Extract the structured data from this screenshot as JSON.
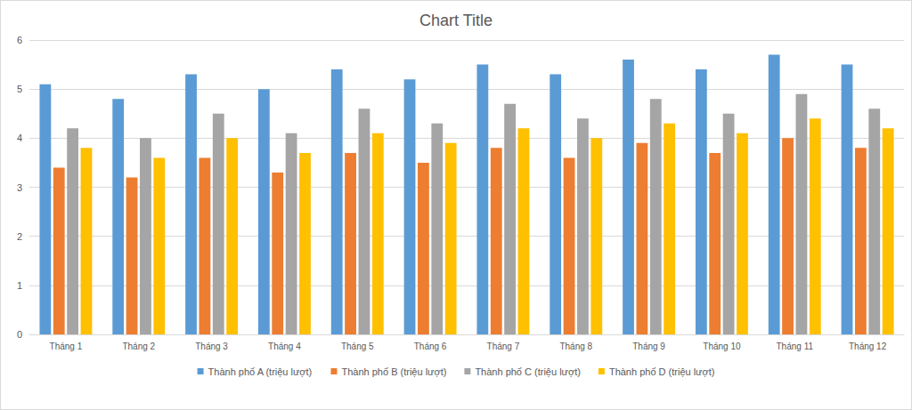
{
  "chart_data": {
    "type": "bar",
    "title": "Chart Title",
    "categories": [
      "Tháng 1",
      "Tháng 2",
      "Tháng 3",
      "Tháng 4",
      "Tháng 5",
      "Tháng 6",
      "Tháng 7",
      "Tháng 8",
      "Tháng 9",
      "Tháng 10",
      "Tháng 11",
      "Tháng 12"
    ],
    "series": [
      {
        "name": "Thành phố A (triệu lượt)",
        "color": "#5b9bd5",
        "values": [
          5.1,
          4.8,
          5.3,
          5.0,
          5.4,
          5.2,
          5.5,
          5.3,
          5.6,
          5.4,
          5.7,
          5.5
        ]
      },
      {
        "name": "Thành phố B (triệu lượt)",
        "color": "#ed7d31",
        "values": [
          3.4,
          3.2,
          3.6,
          3.3,
          3.7,
          3.5,
          3.8,
          3.6,
          3.9,
          3.7,
          4.0,
          3.8
        ]
      },
      {
        "name": "Thành phố C (triệu lượt)",
        "color": "#a5a5a5",
        "values": [
          4.2,
          4.0,
          4.5,
          4.1,
          4.6,
          4.3,
          4.7,
          4.4,
          4.8,
          4.5,
          4.9,
          4.6
        ]
      },
      {
        "name": "Thành phố D (triệu lượt)",
        "color": "#ffc000",
        "values": [
          3.8,
          3.6,
          4.0,
          3.7,
          4.1,
          3.9,
          4.2,
          4.0,
          4.3,
          4.1,
          4.4,
          4.2
        ]
      }
    ],
    "ylim": [
      0,
      6
    ],
    "yticks": [
      0,
      1,
      2,
      3,
      4,
      5,
      6
    ],
    "grid": true,
    "legend": "bottom"
  }
}
